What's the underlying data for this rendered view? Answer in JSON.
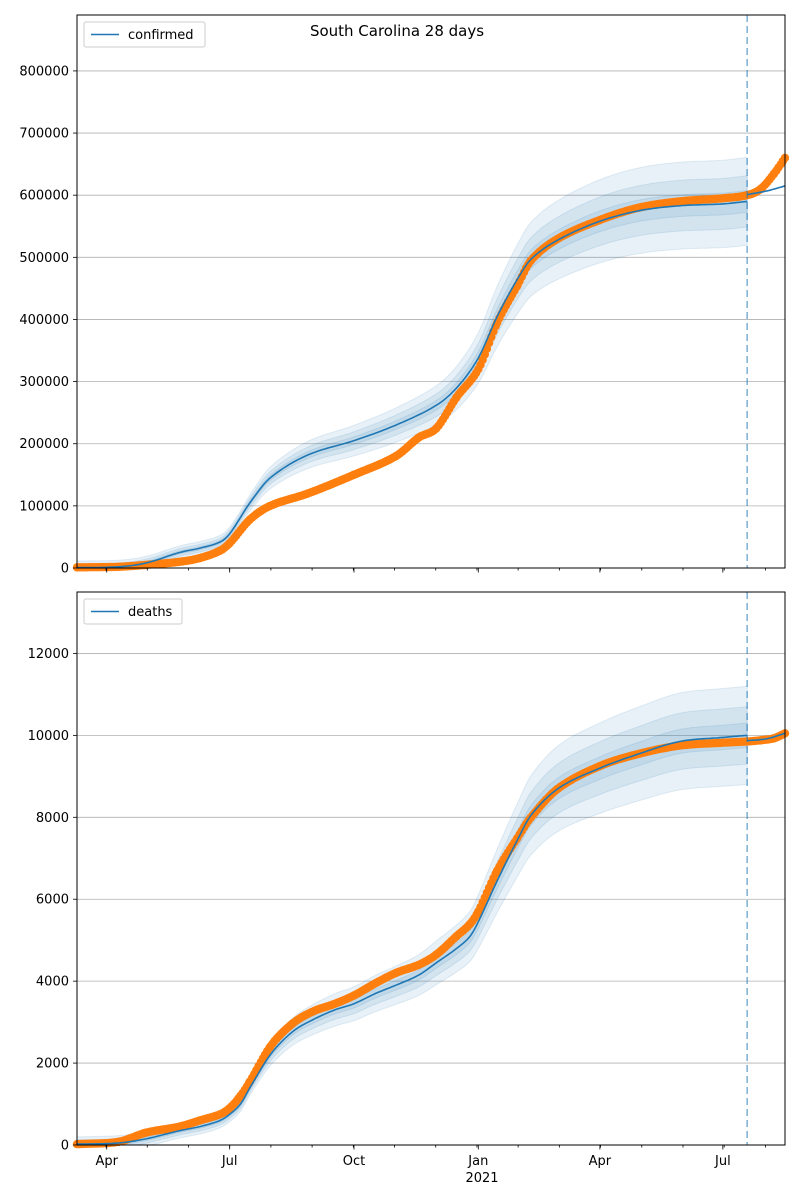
{
  "title": "South Carolina 28 days",
  "colors": {
    "model": "#1f77b4",
    "observed": "#ff7f0e",
    "grid": "#b0b0b0",
    "axes": "#000000"
  },
  "x_tick_labels": [
    "Apr",
    "Jul",
    "Oct",
    "Jan",
    "Apr",
    "Jul"
  ],
  "x_year_label": "2021",
  "chart_data": [
    {
      "type": "line",
      "name": "confirmed",
      "legend_label": "confirmed",
      "x_unit": "days since 2020-03-01",
      "x_range": [
        9,
        533
      ],
      "ylim": [
        0,
        890000
      ],
      "yticks": [
        0,
        100000,
        200000,
        300000,
        400000,
        500000,
        600000,
        700000,
        800000
      ],
      "ytick_labels": [
        "0",
        "100000",
        "200000",
        "300000",
        "400000",
        "500000",
        "600000",
        "700000",
        "800000"
      ],
      "xticks": [
        31,
        122,
        214,
        306,
        396,
        487
      ],
      "forecast_start": 505,
      "model": {
        "x": [
          9,
          40,
          60,
          85,
          100,
          115,
          122,
          137,
          152,
          180,
          214,
          245,
          275,
          290,
          306,
          320,
          335,
          345,
          365,
          396,
          425,
          455,
          487,
          505
        ],
        "y": [
          500,
          2000,
          8000,
          25000,
          32000,
          42000,
          55000,
          105000,
          145000,
          182000,
          205000,
          230000,
          262000,
          290000,
          338000,
          405000,
          465000,
          497000,
          528000,
          558000,
          575000,
          583000,
          586000,
          590000
        ],
        "band_half_widths": [
          0.03,
          0.07,
          0.12
        ]
      },
      "forecast": {
        "x": [
          505,
          520,
          533
        ],
        "y": [
          601000,
          607000,
          615000
        ]
      },
      "observed": {
        "x": [
          9,
          40,
          60,
          85,
          100,
          115,
          122,
          137,
          152,
          180,
          214,
          245,
          262,
          275,
          290,
          306,
          320,
          335,
          345,
          365,
          396,
          425,
          455,
          487,
          505,
          515,
          525,
          533
        ],
        "y": [
          1000,
          2000,
          5000,
          10000,
          16000,
          28000,
          40000,
          78000,
          100000,
          120000,
          150000,
          180000,
          210000,
          225000,
          275000,
          320000,
          395000,
          455000,
          495000,
          530000,
          560000,
          580000,
          590000,
          595000,
          600000,
          610000,
          635000,
          660000
        ]
      }
    },
    {
      "type": "line",
      "name": "deaths",
      "legend_label": "deaths",
      "x_unit": "days since 2020-03-01",
      "x_range": [
        9,
        533
      ],
      "ylim": [
        0,
        13500
      ],
      "yticks": [
        0,
        2000,
        4000,
        6000,
        8000,
        10000,
        12000
      ],
      "ytick_labels": [
        "0",
        "2000",
        "4000",
        "6000",
        "8000",
        "10000",
        "12000"
      ],
      "xticks": [
        31,
        122,
        214,
        306,
        396,
        487
      ],
      "forecast_start": 505,
      "model": {
        "x": [
          9,
          40,
          60,
          85,
          100,
          115,
          122,
          130,
          137,
          152,
          168,
          183,
          200,
          214,
          230,
          245,
          262,
          275,
          290,
          300,
          306,
          320,
          335,
          345,
          365,
          396,
          425,
          455,
          487,
          505
        ],
        "y": [
          20,
          50,
          150,
          350,
          450,
          600,
          750,
          1000,
          1400,
          2200,
          2750,
          3050,
          3300,
          3450,
          3700,
          3900,
          4150,
          4450,
          4800,
          5100,
          5450,
          6450,
          7450,
          8050,
          8700,
          9200,
          9550,
          9850,
          9950,
          10000
        ]
      },
      "forecast": {
        "x": [
          505,
          520,
          533
        ],
        "y": [
          9870,
          9920,
          10050
        ]
      },
      "observed": {
        "x": [
          9,
          40,
          60,
          85,
          100,
          115,
          122,
          130,
          137,
          152,
          168,
          183,
          200,
          214,
          230,
          245,
          262,
          275,
          290,
          300,
          306,
          320,
          335,
          345,
          365,
          396,
          425,
          455,
          487,
          505,
          515,
          525,
          533
        ],
        "y": [
          20,
          80,
          300,
          450,
          600,
          750,
          900,
          1200,
          1550,
          2400,
          2950,
          3250,
          3450,
          3650,
          3950,
          4200,
          4400,
          4650,
          5100,
          5400,
          5700,
          6700,
          7500,
          8000,
          8700,
          9250,
          9550,
          9750,
          9820,
          9850,
          9880,
          9930,
          10050
        ]
      }
    }
  ]
}
